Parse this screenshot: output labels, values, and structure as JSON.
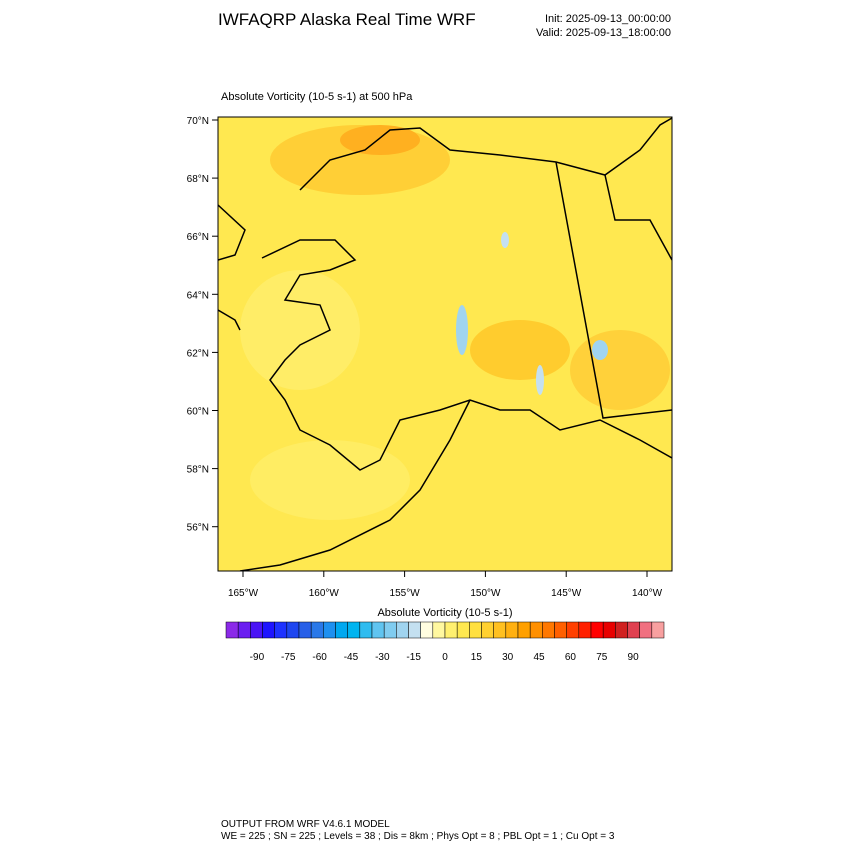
{
  "header": {
    "title": "IWFAQRP Alaska Real Time WRF",
    "init": "Init: 2025-09-13_00:00:00",
    "valid": "Valid: 2025-09-13_18:00:00"
  },
  "map": {
    "subtitle": "Absolute Vorticity   (10-5 s-1)     at   500 hPa",
    "lat_labels": [
      "70°N",
      "68°N",
      "66°N",
      "64°N",
      "62°N",
      "60°N",
      "58°N",
      "56°N"
    ],
    "lon_labels": [
      "165°W",
      "160°W",
      "155°W",
      "150°W",
      "145°W",
      "140°W"
    ]
  },
  "colorbar": {
    "title": "Absolute Vorticity  (10-5 s-1)",
    "labels": [
      -90,
      -75,
      -60,
      -45,
      -30,
      -15,
      0,
      15,
      30,
      45,
      60,
      75,
      90
    ],
    "colors": [
      "#8b2ae8",
      "#6a1ef0",
      "#4a14f5",
      "#1e14ff",
      "#1e32ff",
      "#1e46f0",
      "#2860e8",
      "#2a78e8",
      "#1e90f0",
      "#00a8f0",
      "#00b4f0",
      "#30bcf0",
      "#60c4f0",
      "#80ccf0",
      "#a0d4f0",
      "#c4e0f0",
      "#fffde0",
      "#fff8a0",
      "#fff070",
      "#ffe850",
      "#ffe040",
      "#ffd030",
      "#ffc020",
      "#ffb010",
      "#ffa000",
      "#ff9000",
      "#ff7800",
      "#ff6000",
      "#ff4000",
      "#ff2000",
      "#ff0000",
      "#e80000",
      "#d02020",
      "#e04050",
      "#f07080",
      "#f8a0a0"
    ]
  },
  "footer": {
    "line1": "OUTPUT FROM WRF V4.6.1 MODEL",
    "line2": "WE = 225 ; SN = 225 ; Levels = 38 ; Dis = 8km ; Phys Opt = 8 ; PBL Opt = 1 ; Cu Opt = 3"
  }
}
